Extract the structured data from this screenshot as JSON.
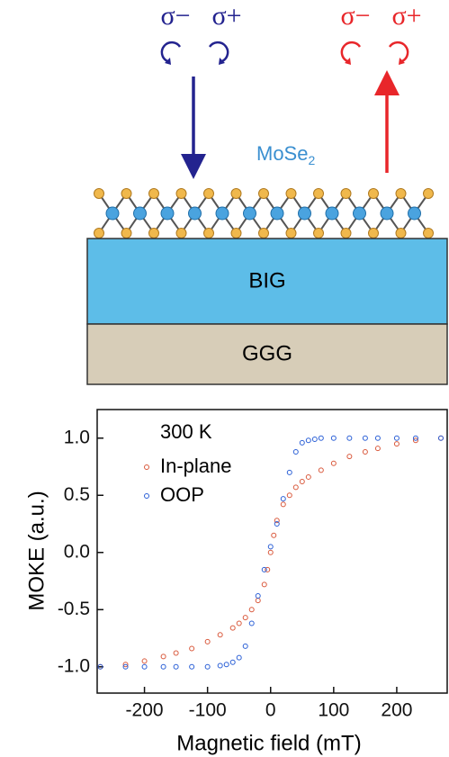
{
  "diagram": {
    "left_labels": [
      "σ−",
      "σ+"
    ],
    "right_labels": [
      "σ−",
      "σ+"
    ],
    "material": "MoSe",
    "material_sub": "2",
    "layer_top": "BIG",
    "layer_bottom": "GGG"
  },
  "chart_data": {
    "type": "scatter",
    "xlabel": "Magnetic field (mT)",
    "ylabel": "MOKE (a.u.)",
    "legend_title": "300 K",
    "xlim": [
      -275,
      280
    ],
    "ylim": [
      -1.23,
      1.25
    ],
    "xticks": [
      -200,
      -100,
      0,
      100,
      200
    ],
    "yticks": [
      {
        "value": 1,
        "label": "1.0"
      },
      0.5,
      {
        "value": 0,
        "label": "0.0"
      },
      -0.5,
      {
        "value": -1,
        "label": "-1.0"
      }
    ],
    "series": [
      {
        "name": "In-plane",
        "color": "#d9583b",
        "x": [
          -270,
          -230,
          -200,
          -170,
          -150,
          -125,
          -100,
          -80,
          -60,
          -50,
          -40,
          -30,
          -20,
          -10,
          -5,
          0,
          5,
          10,
          20,
          30,
          40,
          50,
          60,
          80,
          100,
          125,
          150,
          170,
          200,
          230,
          270
        ],
        "values": [
          -1.0,
          -0.98,
          -0.95,
          -0.91,
          -0.88,
          -0.84,
          -0.78,
          -0.72,
          -0.66,
          -0.62,
          -0.57,
          -0.5,
          -0.42,
          -0.28,
          -0.15,
          0.0,
          0.15,
          0.28,
          0.42,
          0.5,
          0.57,
          0.62,
          0.66,
          0.72,
          0.78,
          0.84,
          0.88,
          0.91,
          0.95,
          0.98,
          1.0
        ]
      },
      {
        "name": "OOP",
        "color": "#2a5fd6",
        "x": [
          -270,
          -230,
          -200,
          -170,
          -150,
          -125,
          -100,
          -80,
          -70,
          -60,
          -50,
          -40,
          -30,
          -20,
          -10,
          0,
          10,
          20,
          30,
          40,
          50,
          60,
          70,
          80,
          100,
          125,
          150,
          170,
          200,
          230,
          270
        ],
        "values": [
          -1.0,
          -1.0,
          -1.0,
          -1.0,
          -1.0,
          -1.0,
          -1.0,
          -0.99,
          -0.98,
          -0.96,
          -0.92,
          -0.82,
          -0.62,
          -0.38,
          -0.15,
          0.05,
          0.25,
          0.47,
          0.7,
          0.88,
          0.96,
          0.98,
          0.99,
          1.0,
          1.0,
          1.0,
          1.0,
          1.0,
          1.0,
          1.0,
          1.0
        ]
      }
    ]
  }
}
